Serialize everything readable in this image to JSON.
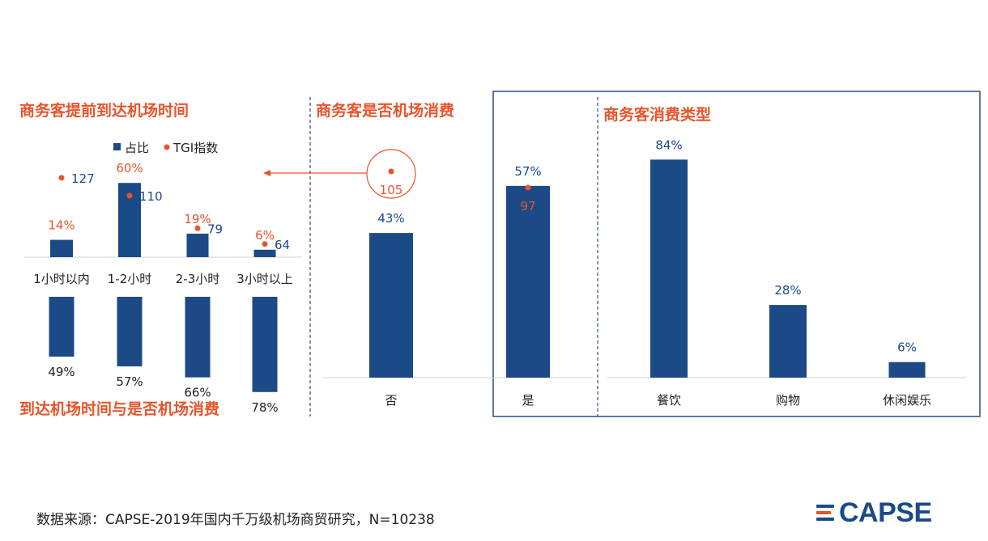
{
  "colors": {
    "bar": "#1c4a86",
    "accent": "#e8542c",
    "text": "#222222",
    "divider": "#2b4e82",
    "axis": "#d0d0d0"
  },
  "titles": {
    "arrival_time": "商务客提前到达机场时间",
    "is_consume": "商务客是否机场消费",
    "consume_type": "商务客消费类型",
    "arrival_vs_consume": "到达机场时间与是否机场消费"
  },
  "legend": {
    "share": "占比",
    "tgi": "TGI指数"
  },
  "chart_data": [
    {
      "type": "bar",
      "title": "商务客提前到达机场时间",
      "categories": [
        "1小时以内",
        "1-2小时",
        "2-3小时",
        "3小时以上"
      ],
      "series": [
        {
          "name": "占比",
          "values": [
            14,
            60,
            19,
            6
          ],
          "labels": [
            "14%",
            "60%",
            "19%",
            "6%"
          ]
        },
        {
          "name": "TGI指数",
          "values": [
            127,
            110,
            79,
            64
          ],
          "labels": [
            "127",
            "110",
            "79",
            "64"
          ]
        }
      ]
    },
    {
      "type": "bar",
      "title": "到达机场时间与是否机场消费",
      "categories": [
        "1小时以内",
        "1-2小时",
        "2-3小时",
        "3小时以上"
      ],
      "values": [
        49,
        57,
        66,
        78
      ],
      "labels": [
        "49%",
        "57%",
        "66%",
        "78%"
      ]
    },
    {
      "type": "bar",
      "title": "商务客是否机场消费",
      "categories": [
        "否",
        "是"
      ],
      "values": [
        43,
        57
      ],
      "labels": [
        "43%",
        "57%"
      ],
      "tgi": [
        105,
        97
      ],
      "tgi_labels": [
        "105",
        "97"
      ]
    },
    {
      "type": "bar",
      "title": "商务客消费类型",
      "categories": [
        "餐饮",
        "购物",
        "休闲娱乐"
      ],
      "values": [
        84,
        28,
        6
      ],
      "labels": [
        "84%",
        "28%",
        "6%"
      ]
    }
  ],
  "footer": {
    "source": "数据来源：CAPSE-2019年国内千万级机场商贸研究，N=10238",
    "logo": "CAPSE"
  }
}
